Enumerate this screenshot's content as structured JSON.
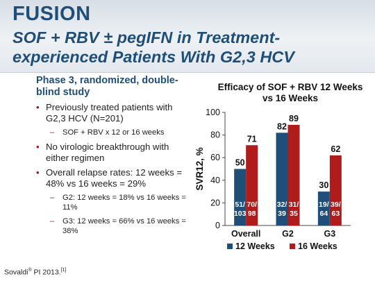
{
  "slide": {
    "title": "FUSION",
    "subtitle": "SOF + RBV ± pegIFN in Treatment-experienced Patients With G2,3 HCV",
    "phase": "Phase 3, randomized, double-blind study",
    "bullets": [
      {
        "text": "Previously treated patients with G2,3 HCV (N=201)",
        "level": 1
      },
      {
        "text": "SOF + RBV x 12 or 16 weeks",
        "level": 2
      },
      {
        "text": "No virologic breakthrough with either regimen",
        "level": 1
      },
      {
        "text": "Overall relapse rates: 12 weeks = 48% vs 16 weeks = 29%",
        "level": 1
      },
      {
        "text": "G2: 12 weeks = 18% vs 16 weeks = 11%",
        "level": 2
      },
      {
        "text": "G3: 12 weeks = 66% vs 16 weeks = 38%",
        "level": 2
      }
    ],
    "footer_text": "Sovaldi",
    "footer_reg": "®",
    "footer_rest": " PI 2013.",
    "footer_ref": "[1]"
  },
  "chart_data": {
    "type": "bar",
    "title": "Efficacy of SOF + RBV 12 Weeks vs 16 Weeks",
    "ylabel": "SVR12, %",
    "xlabel": "",
    "ylim": [
      0,
      100
    ],
    "yticks": [
      0,
      20,
      40,
      60,
      80,
      100
    ],
    "categories": [
      "Overall",
      "G2",
      "G3"
    ],
    "series": [
      {
        "name": "12 Weeks",
        "color": "#1f4e79",
        "values": [
          50,
          82,
          30
        ],
        "inner_labels": [
          [
            "51/",
            "103"
          ],
          [
            "32/",
            "39"
          ],
          [
            "19/",
            "64"
          ]
        ]
      },
      {
        "name": "16 Weeks",
        "color": "#b01c1c",
        "values": [
          71,
          89,
          62
        ],
        "inner_labels": [
          [
            "70/",
            "98"
          ],
          [
            "31/",
            "35"
          ],
          [
            "39/",
            "63"
          ]
        ]
      }
    ],
    "legend_position": "bottom",
    "grid": false
  }
}
